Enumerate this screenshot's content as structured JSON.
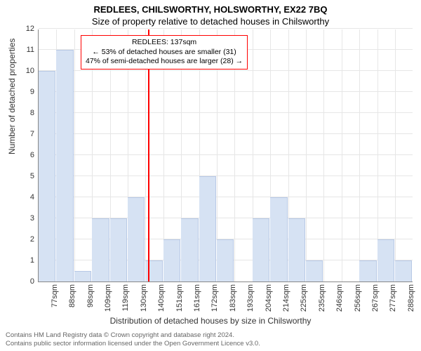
{
  "title_main": "REDLEES, CHILSWORTHY, HOLSWORTHY, EX22 7BQ",
  "title_sub": "Size of property relative to detached houses in Chilsworthy",
  "y_axis_label": "Number of detached properties",
  "x_axis_label": "Distribution of detached houses by size in Chilsworthy",
  "footer_line1": "Contains HM Land Registry data © Crown copyright and database right 2024.",
  "footer_line2": "Contains public sector information licensed under the Open Government Licence v3.0.",
  "chart": {
    "type": "bar",
    "ylim": [
      0,
      12
    ],
    "ytick_step": 1,
    "bar_color": "#d6e2f3",
    "bar_border_color": "#b8c9e6",
    "grid_color": "#e6e6e6",
    "axis_color": "#888888",
    "background_color": "#ffffff",
    "ref_line_color": "#ff0000",
    "ref_line_position": 137,
    "annotation_border_color": "#ff0000",
    "annotation_lines": [
      "REDLEES: 137sqm",
      "← 53% of detached houses are smaller (31)",
      "47% of semi-detached houses are larger (28) →"
    ],
    "x_min": 72,
    "x_max": 294,
    "bin_width_sqm": 10.56,
    "x_tick_labels": [
      "77sqm",
      "88sqm",
      "98sqm",
      "109sqm",
      "119sqm",
      "130sqm",
      "140sqm",
      "151sqm",
      "161sqm",
      "172sqm",
      "183sqm",
      "193sqm",
      "204sqm",
      "214sqm",
      "225sqm",
      "235sqm",
      "246sqm",
      "256sqm",
      "267sqm",
      "277sqm",
      "288sqm"
    ],
    "values": [
      10,
      11,
      0.5,
      3,
      3,
      4,
      1,
      2,
      3,
      5,
      2,
      0,
      3,
      4,
      3,
      1,
      0,
      0,
      1,
      2,
      1
    ]
  }
}
